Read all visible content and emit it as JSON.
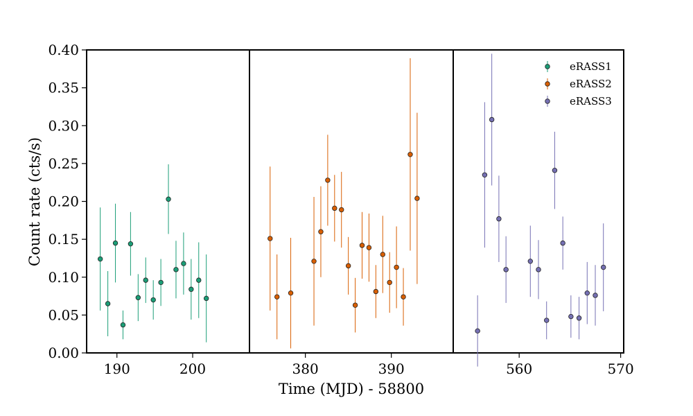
{
  "chart_data": {
    "type": "scatter",
    "ylabel": "Count rate (cts/s)",
    "xlabel": "Time (MJD) - 58800",
    "ylim": [
      0.0,
      0.4
    ],
    "yticks": [
      "0.00",
      "0.05",
      "0.10",
      "0.15",
      "0.20",
      "0.25",
      "0.30",
      "0.35",
      "0.40"
    ],
    "legend_position": "top-right",
    "panels": [
      {
        "name": "eRASS1",
        "xlim": [
          186.0,
          207.5
        ],
        "xticks": [
          "190",
          "200"
        ],
        "color": "#1b9e77"
      },
      {
        "name": "eRASS2",
        "xlim": [
          373.5,
          397.2
        ],
        "xticks": [
          "380",
          "390"
        ],
        "color": "#d95f02"
      },
      {
        "name": "eRASS3",
        "xlim": [
          553.5,
          570.3
        ],
        "xticks": [
          "560",
          "570"
        ],
        "color": "#7570b3"
      }
    ],
    "series": [
      {
        "name": "eRASS1",
        "color": "#1b9e77",
        "points": [
          {
            "x": 187.8,
            "y": 0.124,
            "err": 0.068
          },
          {
            "x": 188.8,
            "y": 0.065,
            "err": 0.043
          },
          {
            "x": 189.8,
            "y": 0.145,
            "err": 0.052
          },
          {
            "x": 190.8,
            "y": 0.037,
            "err": 0.019
          },
          {
            "x": 191.8,
            "y": 0.144,
            "err": 0.042
          },
          {
            "x": 192.8,
            "y": 0.073,
            "err": 0.031
          },
          {
            "x": 193.8,
            "y": 0.096,
            "err": 0.03
          },
          {
            "x": 194.8,
            "y": 0.07,
            "err": 0.026
          },
          {
            "x": 195.8,
            "y": 0.093,
            "err": 0.031
          },
          {
            "x": 196.8,
            "y": 0.203,
            "err": 0.046
          },
          {
            "x": 197.8,
            "y": 0.11,
            "err": 0.038
          },
          {
            "x": 198.8,
            "y": 0.118,
            "err": 0.041
          },
          {
            "x": 199.8,
            "y": 0.084,
            "err": 0.04
          },
          {
            "x": 200.8,
            "y": 0.096,
            "err": 0.05
          },
          {
            "x": 201.8,
            "y": 0.072,
            "err": 0.058
          }
        ]
      },
      {
        "name": "eRASS2",
        "color": "#d95f02",
        "points": [
          {
            "x": 375.9,
            "y": 0.151,
            "err": 0.095
          },
          {
            "x": 376.7,
            "y": 0.074,
            "err": 0.056
          },
          {
            "x": 378.3,
            "y": 0.079,
            "err": 0.073
          },
          {
            "x": 381.0,
            "y": 0.121,
            "err": 0.085
          },
          {
            "x": 381.8,
            "y": 0.16,
            "err": 0.06
          },
          {
            "x": 382.6,
            "y": 0.228,
            "err": 0.06
          },
          {
            "x": 383.4,
            "y": 0.191,
            "err": 0.044
          },
          {
            "x": 384.2,
            "y": 0.189,
            "err": 0.05
          },
          {
            "x": 385.0,
            "y": 0.115,
            "err": 0.038
          },
          {
            "x": 385.8,
            "y": 0.063,
            "err": 0.036
          },
          {
            "x": 386.6,
            "y": 0.142,
            "err": 0.044
          },
          {
            "x": 387.4,
            "y": 0.139,
            "err": 0.045
          },
          {
            "x": 388.2,
            "y": 0.081,
            "err": 0.035
          },
          {
            "x": 389.0,
            "y": 0.13,
            "err": 0.051
          },
          {
            "x": 389.8,
            "y": 0.093,
            "err": 0.04
          },
          {
            "x": 390.6,
            "y": 0.113,
            "err": 0.054
          },
          {
            "x": 391.4,
            "y": 0.074,
            "err": 0.038
          },
          {
            "x": 392.2,
            "y": 0.262,
            "err": 0.127
          },
          {
            "x": 393.0,
            "y": 0.204,
            "err": 0.113
          }
        ]
      },
      {
        "name": "eRASS3",
        "color": "#7570b3",
        "points": [
          {
            "x": 555.9,
            "y": 0.029,
            "err": 0.047
          },
          {
            "x": 556.6,
            "y": 0.235,
            "err": 0.096
          },
          {
            "x": 557.3,
            "y": 0.308,
            "err": 0.087
          },
          {
            "x": 558.0,
            "y": 0.177,
            "err": 0.057
          },
          {
            "x": 558.7,
            "y": 0.11,
            "err": 0.044
          },
          {
            "x": 561.1,
            "y": 0.121,
            "err": 0.047
          },
          {
            "x": 561.9,
            "y": 0.11,
            "err": 0.039
          },
          {
            "x": 562.7,
            "y": 0.043,
            "err": 0.025
          },
          {
            "x": 563.5,
            "y": 0.241,
            "err": 0.051
          },
          {
            "x": 564.3,
            "y": 0.145,
            "err": 0.035
          },
          {
            "x": 565.1,
            "y": 0.048,
            "err": 0.028
          },
          {
            "x": 565.9,
            "y": 0.046,
            "err": 0.028
          },
          {
            "x": 566.7,
            "y": 0.079,
            "err": 0.041
          },
          {
            "x": 567.5,
            "y": 0.076,
            "err": 0.04
          },
          {
            "x": 568.3,
            "y": 0.113,
            "err": 0.058
          }
        ]
      }
    ]
  }
}
